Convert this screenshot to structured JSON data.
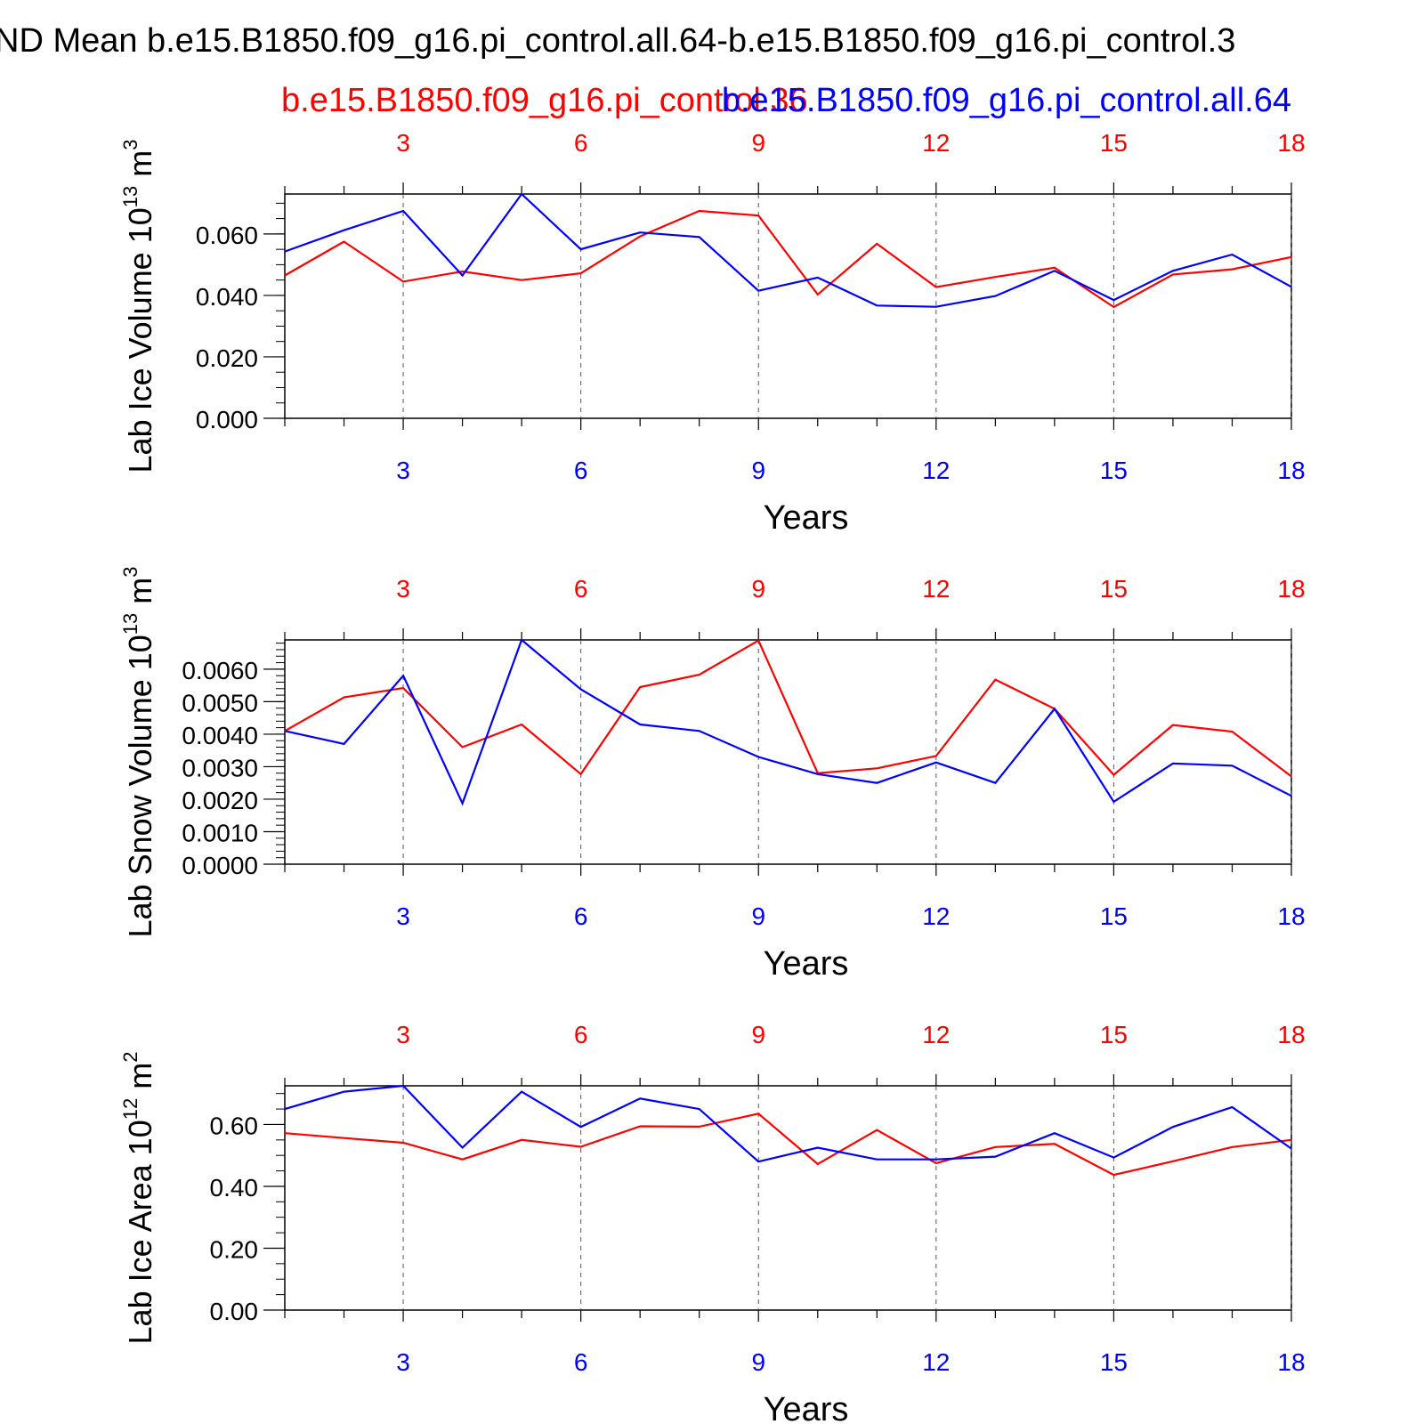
{
  "title": "ND Mean b.e15.B1850.f09_g16.pi_control.all.64-b.e15.B1850.f09_g16.pi_control.3",
  "legend": {
    "red_label": "b.e15.B1850.f09_g16.pi_control.36",
    "blue_label": "b.e15.B1850.f09_g16.pi_control.all.64"
  },
  "colors": {
    "red": "#ff0000",
    "blue": "#0000ff",
    "axis": "#000000"
  },
  "chart_data": [
    {
      "type": "line",
      "ylabel": "Lab Ice Volume 10",
      "ylabel_exp": "13",
      "ylabel_unit": "m",
      "ylabel_unit_exp": "3",
      "xlabel": "Years",
      "xlim": [
        1,
        18
      ],
      "ylim": [
        0,
        0.073
      ],
      "yticks": [
        0,
        0.02,
        0.04,
        0.06
      ],
      "ytick_labels": [
        "0.000",
        "0.020",
        "0.040",
        "0.060"
      ],
      "yminor_step": 0.005,
      "xticks": [
        3,
        6,
        9,
        12,
        15,
        18
      ],
      "xtick_labels": [
        "3",
        "6",
        "9",
        "12",
        "15",
        "18"
      ],
      "x": [
        1,
        2,
        3,
        4,
        5,
        6,
        7,
        8,
        9,
        10,
        11,
        12,
        13,
        14,
        15,
        16,
        17,
        18
      ],
      "series": [
        {
          "name": "b.e15.B1850.f09_g16.pi_control.36",
          "color": "red",
          "values": [
            0.0465,
            0.0575,
            0.0445,
            0.0478,
            0.045,
            0.0472,
            0.0592,
            0.0675,
            0.066,
            0.0403,
            0.0568,
            0.0427,
            0.046,
            0.049,
            0.0362,
            0.0468,
            0.0485,
            0.0525
          ]
        },
        {
          "name": "b.e15.B1850.f09_g16.pi_control.all.64",
          "color": "blue",
          "values": [
            0.0543,
            0.0612,
            0.0675,
            0.0465,
            0.073,
            0.055,
            0.0605,
            0.059,
            0.0415,
            0.0458,
            0.0367,
            0.0363,
            0.0398,
            0.048,
            0.0385,
            0.048,
            0.0533,
            0.0428
          ]
        }
      ]
    },
    {
      "type": "line",
      "ylabel": "Lab Snow Volume 10",
      "ylabel_exp": "13",
      "ylabel_unit": "m",
      "ylabel_unit_exp": "3",
      "xlabel": "Years",
      "xlim": [
        1,
        18
      ],
      "ylim": [
        0,
        0.0069
      ],
      "yticks": [
        0,
        0.001,
        0.002,
        0.003,
        0.004,
        0.005,
        0.006
      ],
      "ytick_labels": [
        "0.0000",
        "0.0010",
        "0.0020",
        "0.0030",
        "0.0040",
        "0.0050",
        "0.0060"
      ],
      "yminor_step": 0.0002,
      "xticks": [
        3,
        6,
        9,
        12,
        15,
        18
      ],
      "xtick_labels": [
        "3",
        "6",
        "9",
        "12",
        "15",
        "18"
      ],
      "x": [
        1,
        2,
        3,
        4,
        5,
        6,
        7,
        8,
        9,
        10,
        11,
        12,
        13,
        14,
        15,
        16,
        17,
        18
      ],
      "series": [
        {
          "name": "b.e15.B1850.f09_g16.pi_control.36",
          "color": "red",
          "values": [
            0.0041,
            0.00513,
            0.00542,
            0.0036,
            0.0043,
            0.00277,
            0.00545,
            0.00583,
            0.00688,
            0.0028,
            0.00295,
            0.00333,
            0.00568,
            0.00478,
            0.00275,
            0.00428,
            0.00408,
            0.0027
          ]
        },
        {
          "name": "b.e15.B1850.f09_g16.pi_control.all.64",
          "color": "blue",
          "values": [
            0.0041,
            0.0037,
            0.0058,
            0.00187,
            0.0069,
            0.00538,
            0.0043,
            0.0041,
            0.0033,
            0.00277,
            0.0025,
            0.00313,
            0.0025,
            0.00478,
            0.00192,
            0.0031,
            0.00303,
            0.0021
          ]
        }
      ]
    },
    {
      "type": "line",
      "ylabel": "Lab Ice Area 10",
      "ylabel_exp": "12",
      "ylabel_unit": "m",
      "ylabel_unit_exp": "2",
      "xlabel": "Years",
      "xlim": [
        1,
        18
      ],
      "ylim": [
        0,
        0.725
      ],
      "yticks": [
        0,
        0.2,
        0.4,
        0.6
      ],
      "ytick_labels": [
        "0.00",
        "0.20",
        "0.40",
        "0.60"
      ],
      "yminor_step": 0.05,
      "xticks": [
        3,
        6,
        9,
        12,
        15,
        18
      ],
      "xtick_labels": [
        "3",
        "6",
        "9",
        "12",
        "15",
        "18"
      ],
      "x": [
        1,
        2,
        3,
        4,
        5,
        6,
        7,
        8,
        9,
        10,
        11,
        12,
        13,
        14,
        15,
        16,
        17,
        18
      ],
      "series": [
        {
          "name": "b.e15.B1850.f09_g16.pi_control.36",
          "color": "red",
          "values": [
            0.572,
            0.556,
            0.541,
            0.487,
            0.55,
            0.528,
            0.594,
            0.593,
            0.635,
            0.472,
            0.582,
            0.475,
            0.527,
            0.537,
            0.437,
            0.481,
            0.527,
            0.55
          ]
        },
        {
          "name": "b.e15.B1850.f09_g16.pi_control.all.64",
          "color": "blue",
          "values": [
            0.65,
            0.706,
            0.725,
            0.525,
            0.706,
            0.592,
            0.684,
            0.65,
            0.48,
            0.525,
            0.487,
            0.487,
            0.496,
            0.572,
            0.493,
            0.592,
            0.656,
            0.522
          ]
        }
      ]
    }
  ]
}
